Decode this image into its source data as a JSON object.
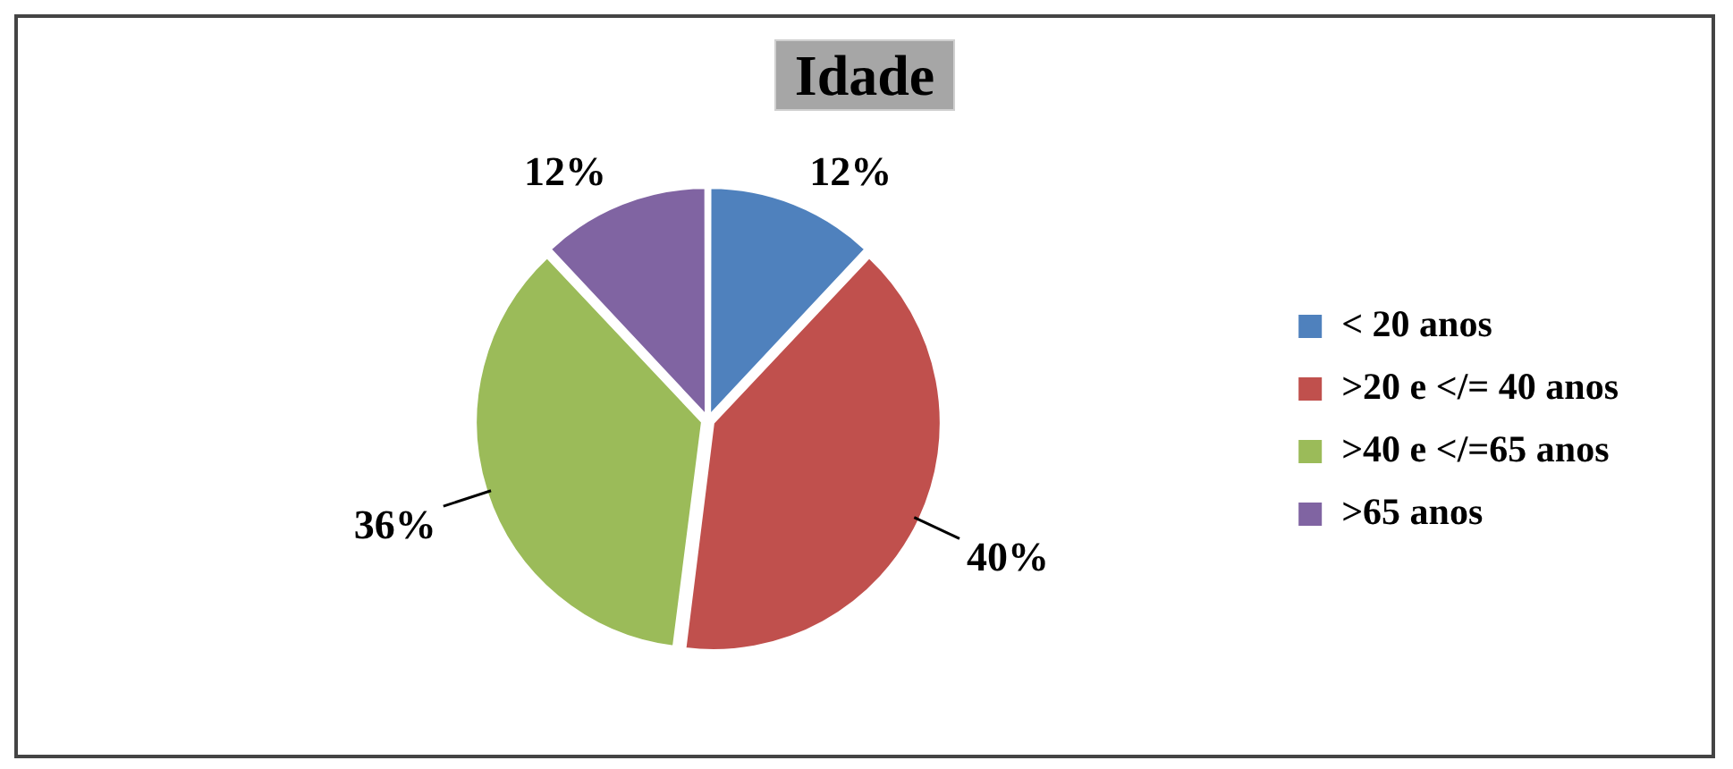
{
  "chart_data": {
    "type": "pie",
    "title": "Idade",
    "categories": [
      "< 20 anos",
      ">20 e </= 40 anos",
      ">40 e </=65 anos",
      ">65 anos"
    ],
    "values": [
      12,
      40,
      36,
      12
    ],
    "colors": [
      "#4f81bd",
      "#c0504d",
      "#9bbb59",
      "#8064a2"
    ],
    "value_labels": [
      "12%",
      "40%",
      "36%",
      "12%"
    ],
    "legend": "right"
  }
}
